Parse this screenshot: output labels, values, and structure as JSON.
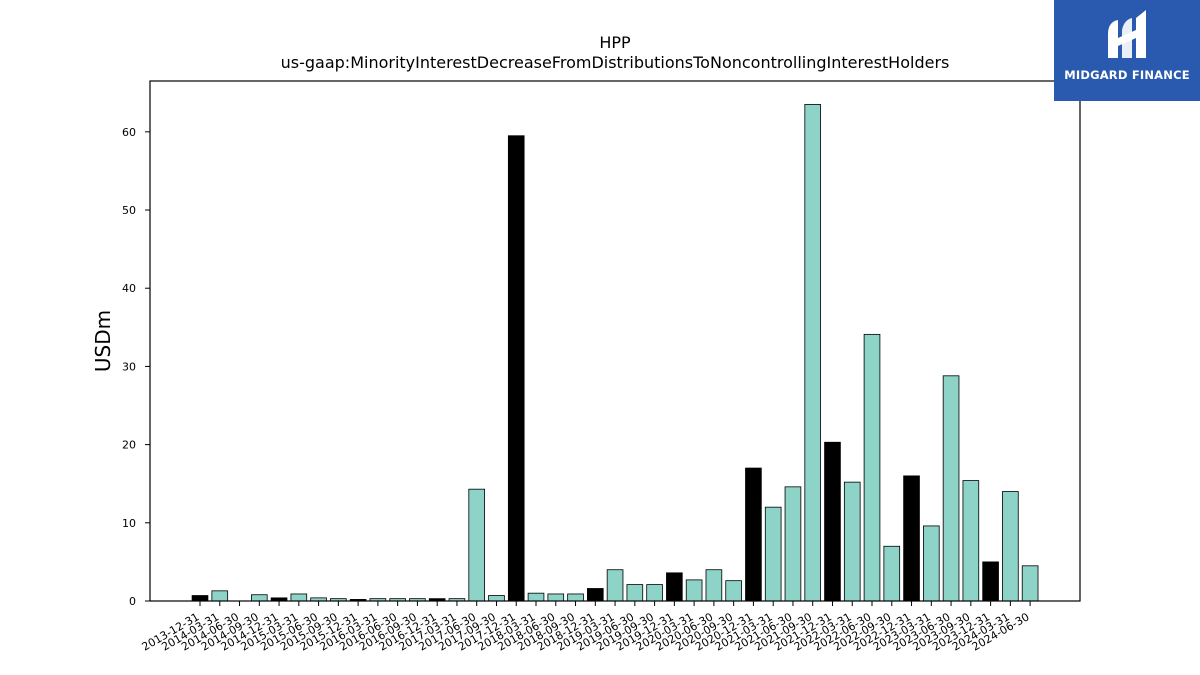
{
  "brand": {
    "name": "MIDGARD FINANCE",
    "icon": "midgard-logo-icon",
    "background": "#2a5ab0"
  },
  "chart_data": {
    "type": "bar",
    "title": "HPP",
    "subtitle": "us-gaap:MinorityInterestDecreaseFromDistributionsToNoncontrollingInterestHolders",
    "xlabel": "",
    "ylabel": "USDm",
    "ylim": [
      0,
      66.5
    ],
    "yticks": [
      0,
      10,
      20,
      30,
      40,
      50,
      60
    ],
    "grid": false,
    "legend": "none",
    "colors": {
      "q4": "#000000",
      "other": "#8dd3c7",
      "edge": "#000000"
    },
    "categories": [
      "2013-12-31",
      "2014-03-31",
      "2014-06-30",
      "2014-09-30",
      "2014-12-31",
      "2015-03-31",
      "2015-06-30",
      "2015-09-30",
      "2015-12-31",
      "2016-03-31",
      "2016-06-30",
      "2016-09-30",
      "2016-12-31",
      "2017-03-31",
      "2017-06-30",
      "2017-09-30",
      "2017-12-31",
      "2018-03-31",
      "2018-06-30",
      "2018-09-30",
      "2018-12-31",
      "2019-03-31",
      "2019-06-30",
      "2019-09-30",
      "2019-12-31",
      "2020-03-31",
      "2020-06-30",
      "2020-09-30",
      "2020-12-31",
      "2021-03-31",
      "2021-06-30",
      "2021-09-30",
      "2021-12-31",
      "2022-03-31",
      "2022-06-30",
      "2022-09-30",
      "2022-12-31",
      "2023-03-31",
      "2023-06-30",
      "2023-09-30",
      "2023-12-31",
      "2024-03-31",
      "2024-06-30"
    ],
    "values": [
      0.7,
      1.3,
      0.0,
      0.8,
      0.4,
      0.9,
      0.4,
      0.3,
      0.2,
      0.3,
      0.3,
      0.3,
      0.3,
      0.3,
      14.3,
      0.7,
      59.5,
      1.0,
      0.9,
      0.9,
      1.6,
      4.0,
      2.1,
      2.1,
      3.6,
      2.7,
      4.0,
      2.6,
      17.0,
      12.0,
      14.6,
      63.5,
      20.3,
      15.2,
      34.1,
      7.0,
      16.0,
      9.6,
      28.8,
      15.4,
      5.0,
      14.0,
      4.5
    ]
  }
}
